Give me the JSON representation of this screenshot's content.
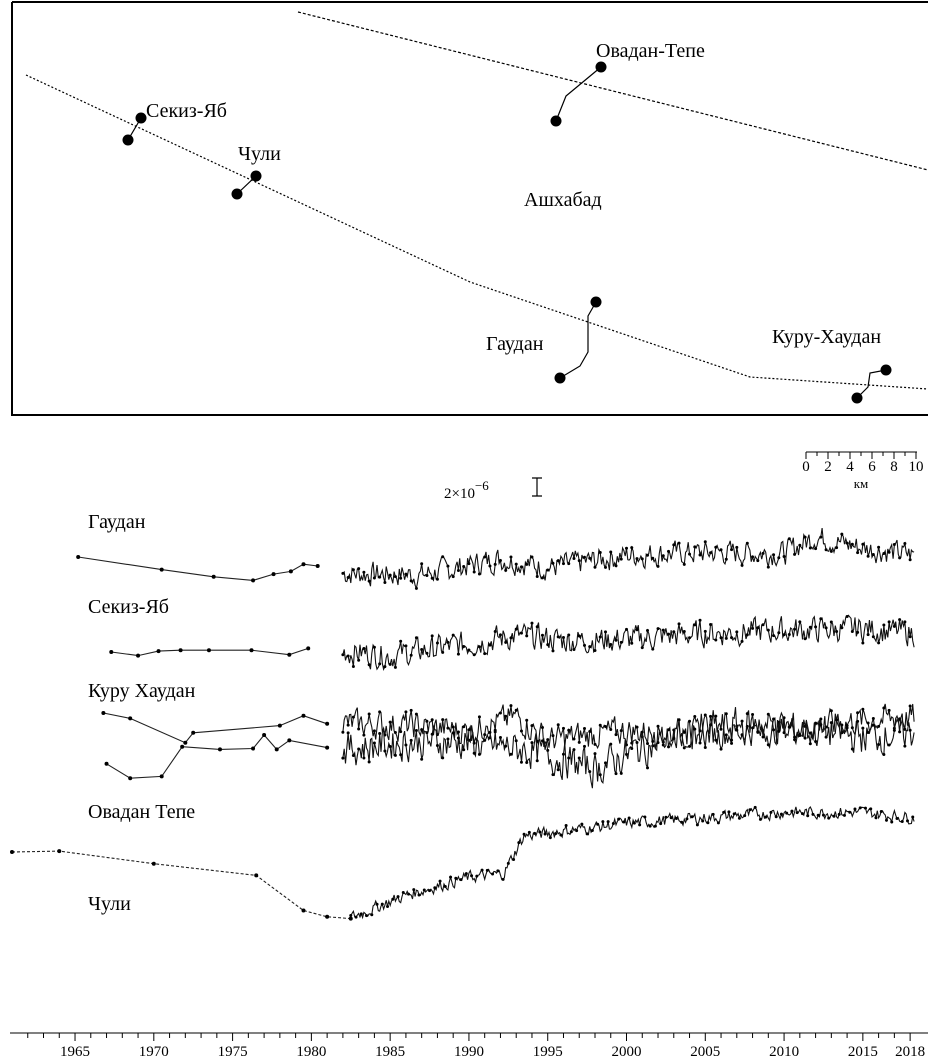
{
  "map": {
    "city_label": "Ашхабад",
    "stations": [
      {
        "key": "ovadan",
        "label": "Овадан-Тепе"
      },
      {
        "key": "sekiz",
        "label": "Секиз-Яб"
      },
      {
        "key": "chuli",
        "label": "Чули"
      },
      {
        "key": "gaudan",
        "label": "Гаудан"
      },
      {
        "key": "kuru",
        "label": "Куру-Хаудан"
      }
    ],
    "scale": {
      "ticks": [
        "0",
        "2",
        "4",
        "6",
        "8",
        "10"
      ],
      "unit": "км"
    }
  },
  "strain_scale": {
    "label": "2×10",
    "exponent": "−6"
  },
  "chart_data": {
    "type": "line",
    "title": "",
    "xlabel": "",
    "ylabel": "",
    "x_range": [
      1961,
      2018.5
    ],
    "x_ticks": [
      1965,
      1970,
      1975,
      1980,
      1985,
      1990,
      1995,
      2000,
      2005,
      2010,
      2015,
      2018
    ],
    "series": [
      {
        "name": "Гаудан",
        "key": "gaudan",
        "early": [
          [
            1965.2,
            0.0
          ],
          [
            1970.5,
            -1.4
          ],
          [
            1973.8,
            -2.2
          ],
          [
            1976.3,
            -2.6
          ],
          [
            1977.6,
            -1.9
          ],
          [
            1978.7,
            -1.6
          ],
          [
            1979.5,
            -0.8
          ],
          [
            1980.4,
            -1.0
          ]
        ],
        "start": 1982.0,
        "end": 2018.3,
        "trend": [
          [
            1982,
            -1.8
          ],
          [
            1987,
            -2.0
          ],
          [
            1992,
            -0.2
          ],
          [
            1995,
            -1.2
          ],
          [
            2000,
            0.2
          ],
          [
            2005,
            0.5
          ],
          [
            2010,
            0.4
          ],
          [
            2012,
            2.3
          ],
          [
            2015,
            1.0
          ],
          [
            2018.3,
            0.2
          ]
        ],
        "noise": 1.1
      },
      {
        "name": "Секиз-Яб",
        "key": "sekiz",
        "early": [
          [
            1967.3,
            0.0
          ],
          [
            1969.0,
            -0.4
          ],
          [
            1970.3,
            0.1
          ],
          [
            1971.7,
            0.2
          ],
          [
            1973.5,
            0.2
          ],
          [
            1976.2,
            0.2
          ],
          [
            1978.6,
            -0.3
          ],
          [
            1979.8,
            0.4
          ]
        ],
        "start": 1982.0,
        "end": 2018.3,
        "trend": [
          [
            1982,
            0.1
          ],
          [
            1985,
            -0.4
          ],
          [
            1988,
            0.4
          ],
          [
            1993,
            1.8
          ],
          [
            1996,
            1.3
          ],
          [
            2000,
            1.4
          ],
          [
            2005,
            2.1
          ],
          [
            2010,
            2.4
          ],
          [
            2015,
            2.6
          ],
          [
            2018.3,
            2.1
          ]
        ],
        "noise": 1.2
      },
      {
        "name": "Куру Хаудан",
        "key": "kuru",
        "early": [
          [
            1966.8,
            0.0
          ],
          [
            1968.5,
            -0.6
          ],
          [
            1972.0,
            -3.3
          ],
          [
            1972.5,
            -2.2
          ],
          [
            1978.0,
            -1.4
          ],
          [
            1979.5,
            -0.3
          ],
          [
            1981.0,
            -1.2
          ]
        ],
        "start": 1982.0,
        "end": 2018.3,
        "trend": [
          [
            1982,
            -1.2
          ],
          [
            1986,
            -1.4
          ],
          [
            1990,
            -2.0
          ],
          [
            1993,
            -0.4
          ],
          [
            1995,
            -3.0
          ],
          [
            2000,
            -2.0
          ],
          [
            2005,
            -2.4
          ],
          [
            2010,
            -1.8
          ],
          [
            2015,
            -0.8
          ],
          [
            2018.3,
            -0.5
          ]
        ],
        "noise": 1.3
      },
      {
        "name": "Овадан Тепе",
        "key": "ovadan",
        "early": [
          [
            1961.0,
            0.0
          ],
          [
            1964.0,
            0.1
          ],
          [
            1970.0,
            -1.3
          ],
          [
            1976.5,
            -2.6
          ],
          [
            1979.5,
            -6.5
          ],
          [
            1981.0,
            -7.2
          ],
          [
            1982.5,
            -7.4
          ]
        ],
        "start": 1982.5,
        "end": 2018.3,
        "trend": [
          [
            1982.5,
            -7.3
          ],
          [
            1986,
            -4.8
          ],
          [
            1990,
            -2.8
          ],
          [
            1992.2,
            -2.4
          ],
          [
            1993.5,
            1.8
          ],
          [
            2000,
            3.2
          ],
          [
            2005,
            3.8
          ],
          [
            2010,
            4.4
          ],
          [
            2015,
            4.4
          ],
          [
            2018.3,
            3.8
          ]
        ],
        "noise": 0.55
      },
      {
        "name": "Чули",
        "key": "chuli",
        "early": [
          [
            1967.0,
            -3.2
          ],
          [
            1968.5,
            -4.8
          ],
          [
            1970.5,
            -4.6
          ],
          [
            1971.8,
            -1.3
          ],
          [
            1974.2,
            -1.6
          ],
          [
            1976.3,
            -1.5
          ],
          [
            1977.0,
            0.0
          ],
          [
            1977.8,
            -1.6
          ],
          [
            1978.6,
            -0.6
          ],
          [
            1981.0,
            -1.4
          ]
        ],
        "start": 1982.0,
        "end": 2018.3,
        "trend": [
          [
            1982,
            -1.6
          ],
          [
            1986,
            -0.8
          ],
          [
            1990,
            -0.8
          ],
          [
            1994,
            -1.8
          ],
          [
            1998,
            -3.8
          ],
          [
            2001,
            -1.4
          ],
          [
            2005,
            0.8
          ],
          [
            2008,
            1.2
          ],
          [
            2011,
            0.6
          ],
          [
            2015,
            -0.2
          ],
          [
            2018.3,
            0.3
          ]
        ],
        "noise": 1.6
      }
    ]
  }
}
